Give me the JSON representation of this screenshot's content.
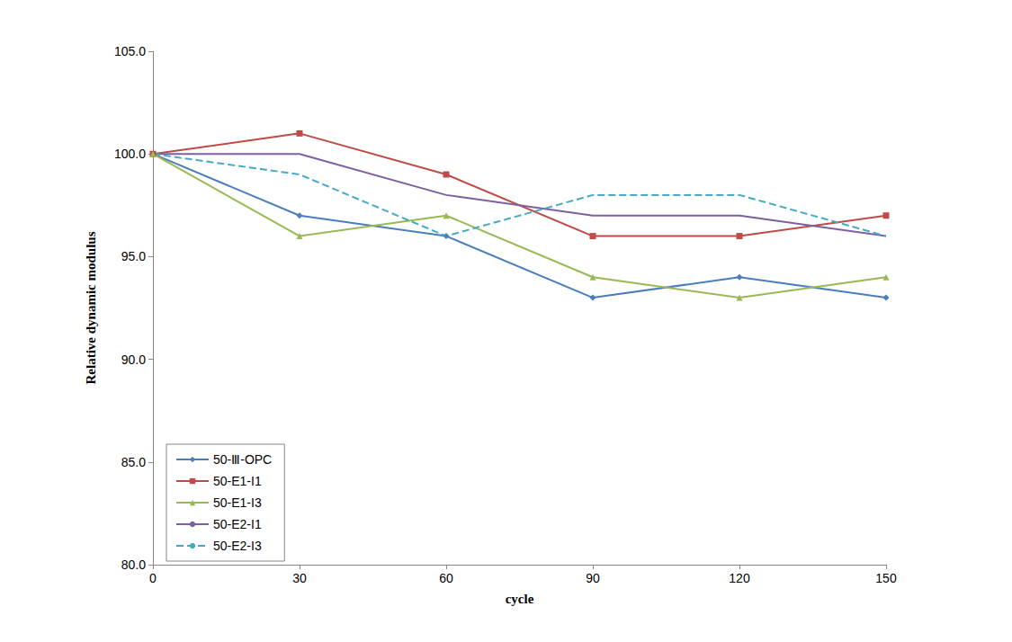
{
  "chart_data": {
    "type": "line",
    "x_label": "cycle",
    "y_label": "Relative dynamic modulus",
    "x": [
      0,
      30,
      60,
      90,
      120,
      150
    ],
    "xlim": [
      0,
      150
    ],
    "xticks": [
      0,
      30,
      60,
      90,
      120,
      150
    ],
    "ylim": [
      80,
      105
    ],
    "yticks": [
      {
        "value": 80,
        "label": "80.0"
      },
      {
        "value": 85,
        "label": "85.0"
      },
      {
        "value": 90,
        "label": "90.0"
      },
      {
        "value": 95,
        "label": "95.0"
      },
      {
        "value": 100,
        "label": "100.0"
      },
      {
        "value": 105,
        "label": "105.0"
      }
    ],
    "grid": false,
    "legend": "lower left",
    "series": [
      {
        "name": "50-Ⅲ-OPC",
        "color": "#4a7ebb",
        "marker": "diamond",
        "line_style": "solid",
        "values": [
          100,
          97,
          96,
          93,
          94,
          93
        ]
      },
      {
        "name": "50-E1-I1",
        "color": "#be4b48",
        "marker": "square",
        "line_style": "solid",
        "values": [
          100,
          101,
          99,
          96,
          96,
          97
        ]
      },
      {
        "name": "50-E1-I3",
        "color": "#98b954",
        "marker": "triangle",
        "line_style": "solid",
        "values": [
          100,
          96,
          97,
          94,
          93,
          94
        ]
      },
      {
        "name": "50-E2-I1",
        "color": "#7d60a0",
        "marker": "none",
        "line_style": "solid",
        "values": [
          100,
          100,
          98,
          97,
          97,
          96
        ]
      },
      {
        "name": "50-E2-I3",
        "color": "#46aac5",
        "marker": "none",
        "line_style": "dashed",
        "values": [
          100,
          99,
          96,
          98,
          98,
          96
        ]
      }
    ]
  }
}
